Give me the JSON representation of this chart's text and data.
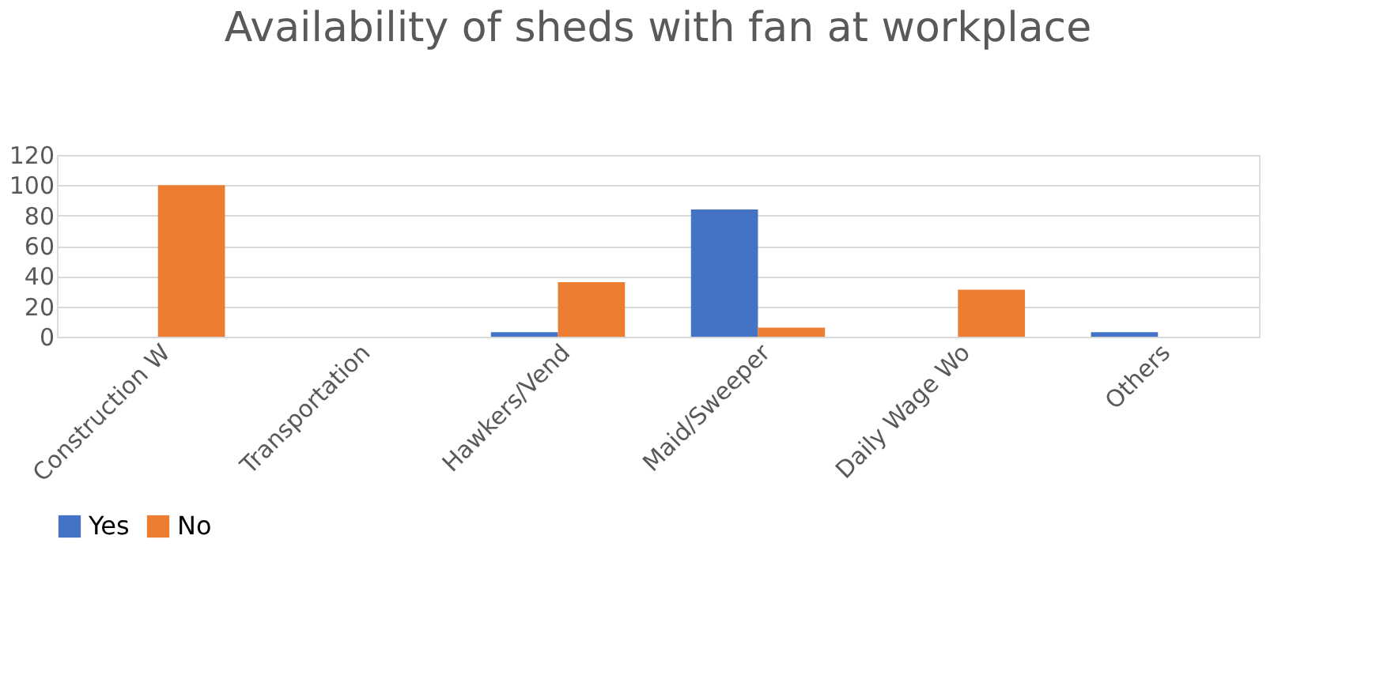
{
  "chart_data": {
    "type": "bar",
    "title": "Availability of sheds with fan at workplace",
    "categories": [
      "Construction W",
      "Transportation",
      "Hawkers/Vend",
      "Maid/Sweeper",
      "Daily Wage Wo",
      "Others"
    ],
    "series": [
      {
        "name": "Yes",
        "color": "#4472c4",
        "values": [
          0,
          0,
          3,
          84,
          0,
          3
        ]
      },
      {
        "name": "No",
        "color": "#ed7d31",
        "values": [
          100,
          0,
          36,
          6,
          31,
          0
        ]
      }
    ],
    "ylim": [
      0,
      120
    ],
    "yticks": [
      0,
      20,
      40,
      60,
      80,
      100,
      120
    ],
    "grid": "y",
    "legend": "bottom"
  }
}
